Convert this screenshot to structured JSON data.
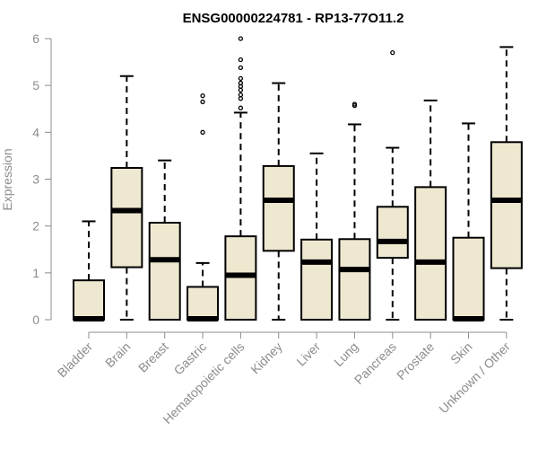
{
  "chart_data": {
    "type": "boxplot",
    "title": "ENSG00000224781 - RP13-77O11.2",
    "ylabel": "Expression",
    "xlabel": "",
    "ylim": [
      0,
      6
    ],
    "yticks": [
      0,
      1,
      2,
      3,
      4,
      5,
      6
    ],
    "box_color": "#eee8d0",
    "axis_color": "#8c8c8c",
    "categories": [
      "Bladder",
      "Brain",
      "Breast",
      "Gastric",
      "Hematopoietic cells",
      "Kidney",
      "Liver",
      "Lung",
      "Pancreas",
      "Prostate",
      "Skin",
      "Unknown / Other"
    ],
    "boxes": [
      {
        "min": 0,
        "q1": 0,
        "median": 0.02,
        "q3": 0.84,
        "max": 2.1,
        "outliers": []
      },
      {
        "min": 0,
        "q1": 1.12,
        "median": 2.33,
        "q3": 3.24,
        "max": 5.2,
        "outliers": []
      },
      {
        "min": 0,
        "q1": 0,
        "median": 1.28,
        "q3": 2.07,
        "max": 3.4,
        "outliers": []
      },
      {
        "min": 0,
        "q1": 0,
        "median": 0.02,
        "q3": 0.7,
        "max": 1.21,
        "outliers": [
          4.0,
          4.65,
          4.78
        ]
      },
      {
        "min": 0,
        "q1": 0,
        "median": 0.95,
        "q3": 1.78,
        "max": 4.42,
        "outliers": [
          4.52,
          4.72,
          4.8,
          4.9,
          4.98,
          5.05,
          5.15,
          5.38,
          5.55,
          6.0
        ]
      },
      {
        "min": 0,
        "q1": 1.47,
        "median": 2.55,
        "q3": 3.28,
        "max": 5.05,
        "outliers": []
      },
      {
        "min": 0,
        "q1": 0,
        "median": 1.23,
        "q3": 1.71,
        "max": 3.55,
        "outliers": []
      },
      {
        "min": 0,
        "q1": 0,
        "median": 1.07,
        "q3": 1.72,
        "max": 4.17,
        "outliers": [
          4.57,
          4.6
        ]
      },
      {
        "min": 0,
        "q1": 1.32,
        "median": 1.67,
        "q3": 2.41,
        "max": 3.67,
        "outliers": [
          5.7
        ]
      },
      {
        "min": 0,
        "q1": 0,
        "median": 1.23,
        "q3": 2.83,
        "max": 4.68,
        "outliers": []
      },
      {
        "min": 0,
        "q1": 0,
        "median": 0.02,
        "q3": 1.75,
        "max": 4.19,
        "outliers": []
      },
      {
        "min": 0,
        "q1": 1.1,
        "median": 2.55,
        "q3": 3.79,
        "max": 5.82,
        "outliers": []
      }
    ]
  }
}
